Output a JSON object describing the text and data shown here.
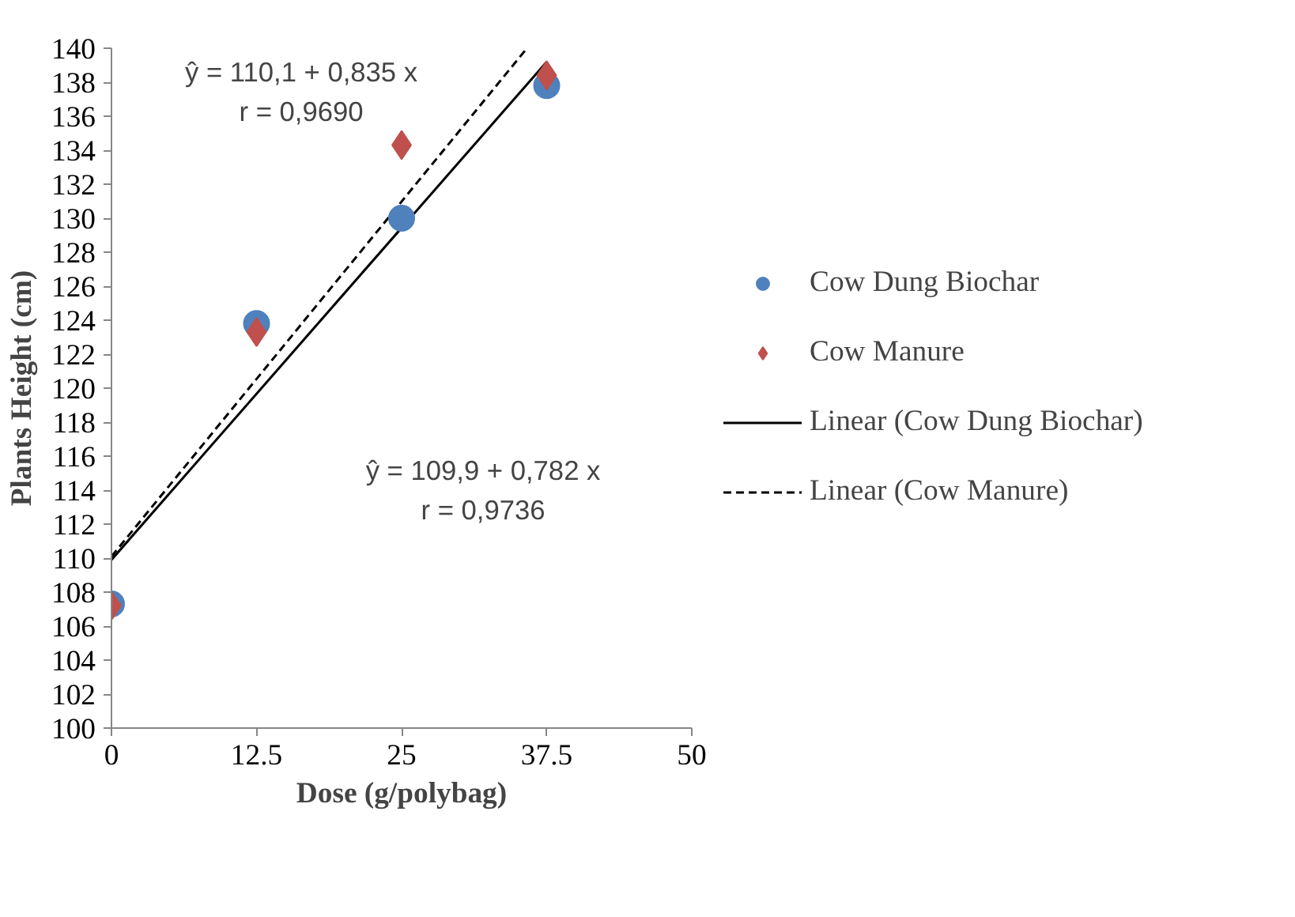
{
  "chart_data": {
    "type": "scatter",
    "xlabel": "Dose (g/polybag)",
    "ylabel": "Plants Height (cm)",
    "xlim": [
      0,
      50
    ],
    "xticks": [
      0,
      12.5,
      25,
      37.5,
      50
    ],
    "ylim": [
      100,
      140
    ],
    "yticks": [
      100,
      102,
      104,
      106,
      108,
      110,
      112,
      114,
      116,
      118,
      120,
      122,
      124,
      126,
      128,
      130,
      132,
      134,
      136,
      138,
      140
    ],
    "grid": false,
    "legend": "right",
    "series": [
      {
        "name": "Cow Dung Biochar",
        "marker": "circle",
        "color": "#4f81bd",
        "x": [
          0,
          12.5,
          25,
          37.5
        ],
        "values": [
          107.3,
          123.8,
          130.0,
          137.8
        ]
      },
      {
        "name": "Cow Manure",
        "marker": "diamond",
        "color": "#c0504d",
        "x": [
          0,
          12.5,
          25,
          37.5
        ],
        "values": [
          107.2,
          123.3,
          134.3,
          138.4
        ]
      },
      {
        "name": "Linear (Cow Dung Biochar)",
        "type": "line",
        "line_style": "solid",
        "color": "#000000",
        "x": [
          0,
          37.5
        ],
        "values": [
          109.9,
          139.2
        ]
      },
      {
        "name": "Linear (Cow Manure)",
        "type": "line",
        "line_style": "dashed",
        "color": "#000000",
        "x": [
          0,
          35.8
        ],
        "values": [
          110.1,
          140.0
        ]
      }
    ],
    "annotations": [
      "ŷ = 110,1 + 0,835 x",
      "r = 0,9690",
      "ŷ = 109,9 + 0,782 x",
      "r = 0,9736"
    ]
  }
}
